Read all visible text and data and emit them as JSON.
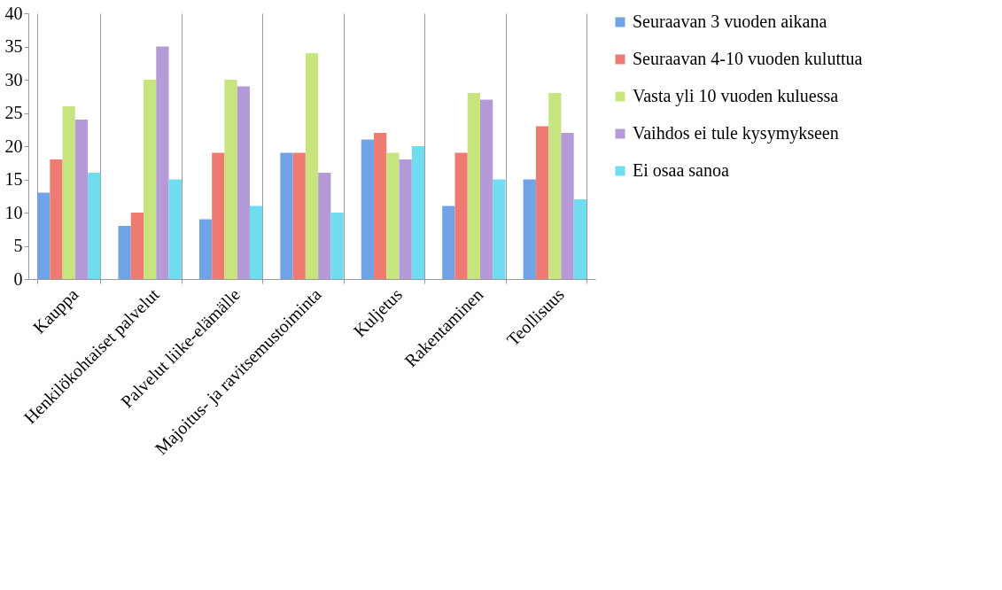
{
  "chart_data": {
    "type": "bar",
    "categories": [
      "Kauppa",
      "Henkilökohtaiset palvelut",
      "Palvelut liike-elämälle",
      "Majoitus- ja ravitsemustoiminta",
      "Kuljetus",
      "Rakentaminen",
      "Teollisuus"
    ],
    "series": [
      {
        "name": "Seuraavan 3 vuoden aikana",
        "color": "#6fa3e6",
        "values": [
          13,
          8,
          9,
          19,
          21,
          11,
          15
        ]
      },
      {
        "name": "Seuraavan 4-10 vuoden kuluttua",
        "color": "#ee7b72",
        "values": [
          18,
          10,
          19,
          19,
          22,
          19,
          23
        ]
      },
      {
        "name": "Vasta yli 10 vuoden kuluessa",
        "color": "#c6e57e",
        "values": [
          26,
          30,
          30,
          34,
          19,
          28,
          28
        ]
      },
      {
        "name": "Vaihdos ei tule kysymykseen",
        "color": "#b59ad8",
        "values": [
          24,
          35,
          29,
          16,
          18,
          27,
          22
        ]
      },
      {
        "name": "Ei osaa sanoa",
        "color": "#6fdcef",
        "values": [
          16,
          15,
          11,
          10,
          20,
          15,
          12
        ]
      }
    ],
    "ylim": [
      0,
      40
    ],
    "yticks": [
      0,
      5,
      10,
      15,
      20,
      25,
      30,
      35,
      40
    ],
    "grid": "x",
    "legend": "right"
  }
}
